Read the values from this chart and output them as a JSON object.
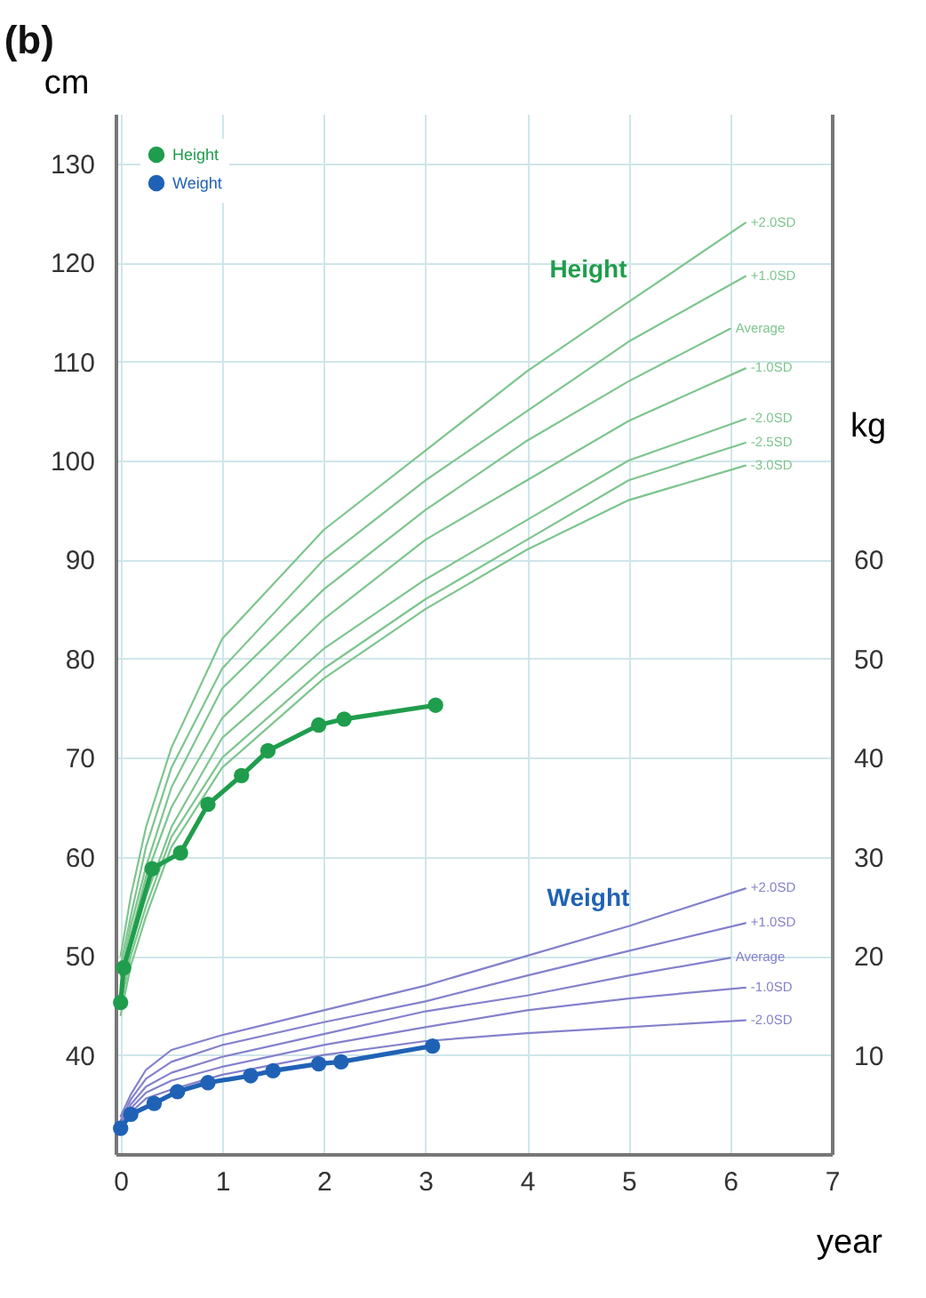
{
  "chart_data": {
    "type": "line",
    "title": "(b)",
    "xlabel": "year",
    "ylabel": "cm",
    "y2label": "kg",
    "xlim": [
      -0.05,
      7
    ],
    "xticks": [
      0,
      1,
      2,
      3,
      4,
      5,
      6,
      7
    ],
    "ylim": [
      30,
      135
    ],
    "yticks": [
      40,
      50,
      60,
      70,
      80,
      90,
      100,
      110,
      120,
      130
    ],
    "y2lim": [
      0,
      105
    ],
    "y2ticks": [
      10,
      20,
      30,
      40,
      50,
      60
    ],
    "grid": true,
    "legend": "top left",
    "annotations": [
      "Height",
      "Weight"
    ],
    "series": [
      {
        "name": "+2.0SD",
        "color": "#7dc58e",
        "marker": "none",
        "x": [
          0,
          0.1,
          0.25,
          0.5,
          1,
          2,
          3,
          4,
          5,
          6.15
        ],
        "values": [
          50,
          56,
          63,
          71,
          82,
          93,
          101,
          109,
          116,
          124
        ]
      },
      {
        "name": "+1.0SD",
        "color": "#7dc58e",
        "marker": "none",
        "x": [
          0,
          0.1,
          0.25,
          0.5,
          1,
          2,
          3,
          4,
          5,
          6.15
        ],
        "values": [
          49,
          54,
          61,
          69,
          79,
          90,
          98,
          105,
          112,
          118.6
        ]
      },
      {
        "name": "Average",
        "color": "#7dc58e",
        "marker": "none",
        "x": [
          0,
          0.1,
          0.25,
          0.5,
          1,
          2,
          3,
          4,
          5,
          6.0
        ],
        "values": [
          48,
          53,
          59,
          67,
          77,
          87,
          95,
          102,
          108,
          113.3
        ]
      },
      {
        "name": "-1.0SD",
        "color": "#7dc58e",
        "marker": "none",
        "x": [
          0,
          0.1,
          0.25,
          0.5,
          1,
          2,
          3,
          4,
          5,
          6.15
        ],
        "values": [
          47,
          52,
          58,
          65,
          74,
          84,
          92,
          98,
          104,
          109.3
        ]
      },
      {
        "name": "-2.0SD",
        "color": "#7dc58e",
        "marker": "none",
        "x": [
          0,
          0.1,
          0.25,
          0.5,
          1,
          2,
          3,
          4,
          5,
          6.15
        ],
        "values": [
          46,
          51,
          56,
          63,
          72,
          81,
          88,
          94,
          100,
          104.2
        ]
      },
      {
        "name": "-2.5SD",
        "color": "#7dc58e",
        "marker": "none",
        "x": [
          0,
          0.1,
          0.25,
          0.5,
          1,
          2,
          3,
          4,
          5,
          6.15
        ],
        "values": [
          45,
          50,
          55,
          62,
          70,
          79,
          86,
          92,
          98,
          101.8
        ]
      },
      {
        "name": "-3.0SD",
        "color": "#7dc58e",
        "marker": "none",
        "x": [
          0,
          0.1,
          0.25,
          0.5,
          1,
          2,
          3,
          4,
          5,
          6.15
        ],
        "values": [
          44,
          49,
          54,
          61,
          69,
          78,
          85,
          91,
          96,
          99.5
        ]
      },
      {
        "name": "+2.0SD",
        "color": "#8481cc",
        "marker": "none",
        "axis": "y2",
        "x": [
          0,
          0.1,
          0.25,
          0.5,
          1,
          2,
          3,
          4,
          5,
          6.15
        ],
        "values": [
          3.8,
          6,
          8.5,
          10.5,
          12,
          14.5,
          17,
          20,
          23,
          26.8
        ]
      },
      {
        "name": "+1.0SD",
        "color": "#8481cc",
        "marker": "none",
        "axis": "y2",
        "x": [
          0,
          0.1,
          0.25,
          0.5,
          1,
          2,
          3,
          4,
          5,
          6.15
        ],
        "values": [
          3.4,
          5.5,
          7.6,
          9.3,
          11,
          13.3,
          15.4,
          18,
          20.5,
          23.3
        ]
      },
      {
        "name": "Average",
        "color": "#8481cc",
        "marker": "none",
        "axis": "y2",
        "x": [
          0,
          0.1,
          0.25,
          0.5,
          1,
          2,
          3,
          4,
          5,
          6.0
        ],
        "values": [
          3.0,
          5,
          6.8,
          8.2,
          9.8,
          12.1,
          14.4,
          16,
          18,
          19.8
        ]
      },
      {
        "name": "-1.0SD",
        "color": "#8481cc",
        "marker": "none",
        "axis": "y2",
        "x": [
          0,
          0.1,
          0.25,
          0.5,
          1,
          2,
          3,
          4,
          5,
          6.15
        ],
        "values": [
          2.7,
          4.6,
          6.2,
          7.4,
          8.8,
          11,
          12.8,
          14.5,
          15.7,
          16.8
        ]
      },
      {
        "name": "-2.0SD",
        "color": "#8481cc",
        "marker": "none",
        "axis": "y2",
        "x": [
          0,
          0.1,
          0.25,
          0.5,
          1,
          2,
          3,
          4,
          5,
          6.15
        ],
        "values": [
          2.4,
          4.2,
          5.6,
          6.5,
          8.0,
          10,
          11.4,
          12.2,
          12.8,
          13.5
        ]
      },
      {
        "name": "Height",
        "color": "#1f9d4c",
        "marker": "circle",
        "x": [
          0,
          0.03,
          0.31,
          0.59,
          0.86,
          1.19,
          1.45,
          1.95,
          2.2,
          3.1
        ],
        "values": [
          45.3,
          48.8,
          58.8,
          60.4,
          65.3,
          68.2,
          70.7,
          73.3,
          73.9,
          75.3
        ]
      },
      {
        "name": "Weight",
        "color": "#1f62b5",
        "marker": "circle",
        "axis": "y2",
        "x": [
          0,
          0.1,
          0.33,
          0.56,
          0.86,
          1.28,
          1.5,
          1.95,
          2.17,
          3.07
        ],
        "values": [
          2.6,
          4.0,
          5.1,
          6.3,
          7.2,
          7.9,
          8.4,
          9.1,
          9.3,
          10.9
        ]
      }
    ]
  }
}
